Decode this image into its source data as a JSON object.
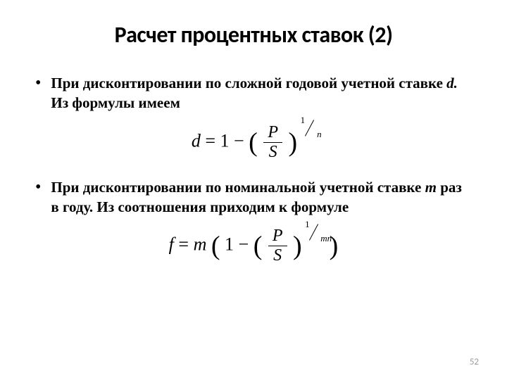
{
  "title": "Расчет процентных ставок (2)",
  "bullets": [
    {
      "pre": " При дисконтировании по сложной годовой учетной ставке ",
      "italic": "d.",
      "post": " Из формулы  имеем"
    },
    {
      "pre": "При дисконтировании по номинальной учетной ставке ",
      "italic": "m",
      "post": " раз в году. Из соотношения  приходим к формуле"
    }
  ],
  "formula1": {
    "lhs": "d",
    "eq": " = ",
    "one_minus": "1 − ",
    "num": "P",
    "den": "S",
    "exp_num": "1",
    "exp_den": "n"
  },
  "formula2": {
    "lhs": "f",
    "eq": " = ",
    "m": "m",
    "one_minus": "1 − ",
    "num": "P",
    "den": "S",
    "exp_num": "1",
    "exp_den": "mn"
  },
  "page_number": "52",
  "colors": {
    "text": "#000000",
    "bg": "#ffffff",
    "pagenum": "#999999"
  }
}
